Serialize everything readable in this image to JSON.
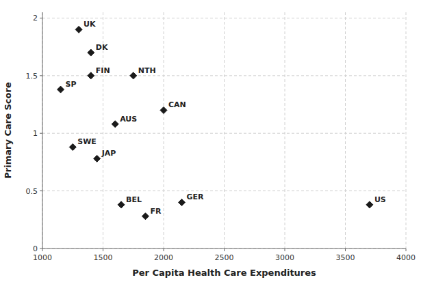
{
  "chart_data": {
    "type": "scatter",
    "x_label": "Per Capita Health Care Expenditures",
    "y_label": "Primary Care Score",
    "labels": [
      "UK",
      "DK",
      "NTH",
      "FIN",
      "SP",
      "CAN",
      "AUS",
      "SWE",
      "JAP",
      "BEL",
      "FR",
      "GER",
      "US"
    ],
    "x": [
      1300,
      1400,
      1750,
      1400,
      1150,
      2000,
      1600,
      1250,
      1450,
      1650,
      1850,
      2150,
      3700
    ],
    "values": [
      1.9,
      1.7,
      1.5,
      1.5,
      1.38,
      1.2,
      1.08,
      0.88,
      0.78,
      0.38,
      0.28,
      0.4,
      0.38
    ],
    "color": "#1a1a1a",
    "marker": "diamond",
    "xlim": [
      1000,
      4000
    ],
    "ylim": [
      0,
      2.05
    ],
    "xticks": [
      1000,
      1500,
      2000,
      2500,
      3000,
      3500,
      4000
    ],
    "yticks": [
      0,
      0.5,
      1,
      1.5,
      2
    ],
    "grid": true
  }
}
